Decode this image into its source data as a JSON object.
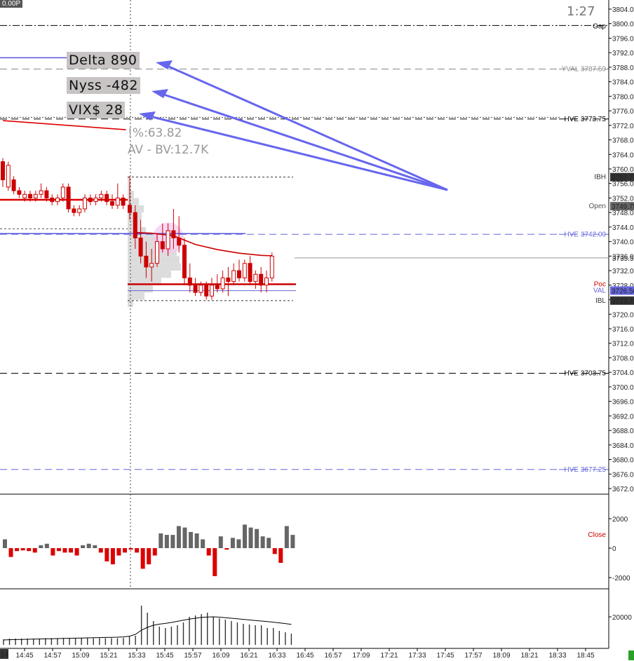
{
  "header": {
    "corner_label": "0.00P",
    "clock": "1:27"
  },
  "badges": {
    "delta": "Delta 890",
    "nyss": "Nyss -482",
    "vix": "VIX$ 28"
  },
  "stats": {
    "percent": "!%:63.82",
    "av_bv": "AV - BV:12.7K"
  },
  "chart_data": {
    "type": "candlestick",
    "price_axis": {
      "range": [
        3668,
        3806
      ],
      "ticks": [
        3804,
        3800,
        3796,
        3792,
        3788,
        3784,
        3780,
        3776,
        3772,
        3768,
        3764,
        3760,
        3756,
        3752,
        3748,
        3744,
        3740,
        3736,
        3732,
        3728,
        3724,
        3720,
        3716,
        3712,
        3708,
        3704,
        3700,
        3696,
        3692,
        3688,
        3684,
        3680,
        3676,
        3672
      ],
      "tick_labels": [
        "3804.00",
        "3800.00",
        "3796.00",
        "3792.00",
        "3788.00",
        "3784.00",
        "3780.00",
        "3776.00",
        "3772.00",
        "3768.00",
        "3764.00",
        "3760.00",
        "3756.00",
        "3752.00",
        "3748.00",
        "3744.00",
        "3740.00",
        "3736.00",
        "3732.00",
        "3728.00",
        "3724.00",
        "3720.00",
        "3716.00",
        "3712.00",
        "3708.00",
        "3704.00",
        "3700.00",
        "3696.00",
        "3692.00",
        "3688.00",
        "3684.00",
        "3680.00",
        "3676.00",
        "3672.00"
      ],
      "last_price": "3735.50",
      "flags": [
        {
          "value": 3757.75,
          "text": "3757.75",
          "color": "#333333"
        },
        {
          "value": 3749.75,
          "text": "3749.75",
          "color": "#666666"
        },
        {
          "value": 3726.5,
          "text": "3726.50",
          "color": "#6666dd"
        },
        {
          "value": 3723.75,
          "text": "3723.75",
          "color": "#333333"
        }
      ]
    },
    "time_axis": {
      "labels": [
        "14:45",
        "14:57",
        "15:09",
        "15:21",
        "15:33",
        "15:45",
        "15:57",
        "16:09",
        "16:21",
        "16:33",
        "16:45",
        "16:57",
        "17:09",
        "17:21",
        "17:33",
        "17:45",
        "17:57",
        "18:09",
        "18:21",
        "18:33",
        "18:45"
      ],
      "first_label": "14",
      "session_break": "15:33"
    },
    "levels": [
      {
        "name": "Gap",
        "value": 3799.5,
        "color": "#000000",
        "dash": "dashdot",
        "label": "Gap"
      },
      {
        "name": "YVAL",
        "value": 3787.5,
        "color": "#888888",
        "dash": "long",
        "label": "YVAL 3787.50"
      },
      {
        "name": "HVE",
        "value": 3773.75,
        "color": "#000000",
        "dash": "long",
        "label": "HVE 3773.75"
      },
      {
        "name": "IBH",
        "value": 3757.75,
        "color": "#333333",
        "dash": "short",
        "label": "IBH"
      },
      {
        "name": "Open",
        "value": 3749.75,
        "color": "#555555",
        "dash": "none",
        "label": "Open"
      },
      {
        "name": "HVE",
        "value": 3742.0,
        "color": "#6666dd",
        "dash": "long",
        "label": "HVE 3742.00"
      },
      {
        "name": "Poc",
        "value": 3728.25,
        "color": "#cc0000",
        "dash": "none",
        "label": "Poc"
      },
      {
        "name": "VAL",
        "value": 3726.5,
        "color": "#6666dd",
        "dash": "none",
        "label": "VAL"
      },
      {
        "name": "IBL",
        "value": 3723.75,
        "color": "#333333",
        "dash": "short",
        "label": "IBL"
      },
      {
        "name": "HVE",
        "value": 3703.75,
        "color": "#000000",
        "dash": "long",
        "label": "HVE 3703.75"
      },
      {
        "name": "HVE",
        "value": 3677.25,
        "color": "#6666dd",
        "dash": "long",
        "label": "HVE 3677.25"
      }
    ],
    "candles_prev": [
      [
        3762,
        3763,
        3755,
        3757
      ],
      [
        3755,
        3762,
        3754,
        3761
      ],
      [
        3757,
        3758,
        3753,
        3754
      ],
      [
        3754,
        3755,
        3752,
        3753
      ],
      [
        3752,
        3754,
        3751,
        3753
      ],
      [
        3753,
        3754,
        3751,
        3752
      ],
      [
        3752,
        3754,
        3751,
        3753
      ],
      [
        3753,
        3756,
        3752,
        3754
      ],
      [
        3754,
        3755,
        3751,
        3752
      ],
      [
        3752,
        3753,
        3750,
        3751
      ],
      [
        3751,
        3753,
        3750,
        3752
      ],
      [
        3752,
        3756,
        3751,
        3755
      ],
      [
        3755,
        3756,
        3748,
        3749
      ],
      [
        3749,
        3750,
        3747,
        3748
      ],
      [
        3748,
        3750,
        3747,
        3749
      ],
      [
        3749,
        3753,
        3748,
        3752
      ],
      [
        3752,
        3753,
        3750,
        3751
      ],
      [
        3751,
        3753,
        3750,
        3752
      ],
      [
        3752,
        3754,
        3751,
        3753
      ],
      [
        3753,
        3754,
        3750,
        3751
      ],
      [
        3751,
        3753,
        3749,
        3750
      ],
      [
        3750,
        3756,
        3749,
        3752
      ],
      [
        3752,
        3753,
        3749,
        3750
      ]
    ],
    "candles_session": [
      [
        3750,
        3758,
        3746,
        3748
      ],
      [
        3748,
        3750,
        3738,
        3741
      ],
      [
        3741,
        3746,
        3734,
        3736
      ],
      [
        3736,
        3740,
        3730,
        3733
      ],
      [
        3733,
        3738,
        3729,
        3734
      ],
      [
        3734,
        3742,
        3733,
        3740
      ],
      [
        3740,
        3745,
        3737,
        3738
      ],
      [
        3738,
        3745,
        3736,
        3743
      ],
      [
        3743,
        3749,
        3738,
        3741
      ],
      [
        3741,
        3747,
        3737,
        3739
      ],
      [
        3739,
        3741,
        3728,
        3730
      ],
      [
        3730,
        3734,
        3726,
        3728
      ],
      [
        3728,
        3730,
        3725,
        3726
      ],
      [
        3726,
        3729,
        3725,
        3728
      ],
      [
        3728,
        3729,
        3724,
        3725
      ],
      [
        3725,
        3730,
        3724,
        3728
      ],
      [
        3728,
        3731,
        3726,
        3727
      ],
      [
        3727,
        3732,
        3726,
        3730
      ],
      [
        3730,
        3733,
        3725,
        3729
      ],
      [
        3729,
        3734,
        3728,
        3732
      ],
      [
        3732,
        3735,
        3729,
        3730
      ],
      [
        3730,
        3735,
        3729,
        3734
      ],
      [
        3734,
        3736,
        3728,
        3729
      ],
      [
        3729,
        3732,
        3727,
        3731
      ],
      [
        3731,
        3733,
        3726,
        3728
      ],
      [
        3728,
        3732,
        3726,
        3730
      ],
      [
        3730,
        3737,
        3729,
        3736
      ]
    ],
    "vwap_prev": [
      [
        0,
        3773.3
      ],
      [
        22,
        3770.8
      ]
    ],
    "vwap_session": [
      [
        1,
        3742.5
      ],
      [
        4,
        3742.3
      ],
      [
        8,
        3741.6
      ],
      [
        12,
        3739.2
      ],
      [
        16,
        3737.8
      ],
      [
        20,
        3736.8
      ],
      [
        24,
        3736.2
      ],
      [
        26,
        3736.1
      ]
    ],
    "delta_pane": {
      "ticks": [
        2000,
        0,
        -2000
      ],
      "tick_labels": [
        "2000",
        "0",
        "-2000"
      ],
      "label": "Close",
      "values": [
        600,
        -600,
        -200,
        -150,
        -200,
        -300,
        200,
        300,
        -500,
        -200,
        -300,
        -300,
        -500,
        200,
        300,
        200,
        -300,
        -900,
        -1100,
        -500,
        -300,
        -100,
        -300,
        -1400,
        -1100,
        -500,
        1000,
        900,
        900,
        1500,
        1400,
        1100,
        1000,
        600,
        -500,
        -1900,
        800,
        -100,
        700,
        600,
        1600,
        1400,
        1300,
        800,
        700,
        -400,
        -1000,
        1500,
        900
      ]
    },
    "volume_pane": {
      "ticks": [
        20000
      ],
      "tick_labels": [
        "20000"
      ],
      "values": [
        4000,
        4500,
        4500,
        4500,
        4500,
        4500,
        4500,
        4800,
        4800,
        4800,
        5000,
        5000,
        4800,
        4800,
        4800,
        4800,
        4800,
        4800,
        4800,
        4800,
        5000,
        6000,
        6500,
        28000,
        23000,
        17000,
        13000,
        12000,
        13000,
        14000,
        16000,
        20000,
        21000,
        22000,
        23000,
        20000,
        19000,
        18000,
        17000,
        16000,
        15000,
        14500,
        14000,
        14000,
        12000,
        12000,
        10000,
        9000,
        8000
      ],
      "average": [
        3500,
        3700,
        3800,
        3900,
        4000,
        4100,
        4200,
        4300,
        4400,
        4500,
        4600,
        4700,
        4800,
        4900,
        5000,
        5100,
        5200,
        5300,
        5400,
        5500,
        5700,
        6200,
        7500,
        10500,
        12500,
        14000,
        14800,
        15300,
        16000,
        16800,
        17600,
        18400,
        19000,
        19600,
        19900,
        20000,
        19800,
        19400,
        19000,
        18600,
        18200,
        17800,
        17400,
        17000,
        16600,
        16200,
        15700,
        15200,
        14600
      ]
    },
    "profile": {
      "prices": [
        3757,
        3755,
        3753,
        3751,
        3749,
        3747,
        3745,
        3743,
        3741,
        3739,
        3737,
        3735,
        3733,
        3731,
        3729,
        3727,
        3725,
        3723
      ],
      "widths": [
        2,
        4,
        9,
        16,
        23,
        20,
        18,
        26,
        44,
        58,
        70,
        74,
        76,
        62,
        48,
        36,
        24,
        8
      ]
    }
  }
}
